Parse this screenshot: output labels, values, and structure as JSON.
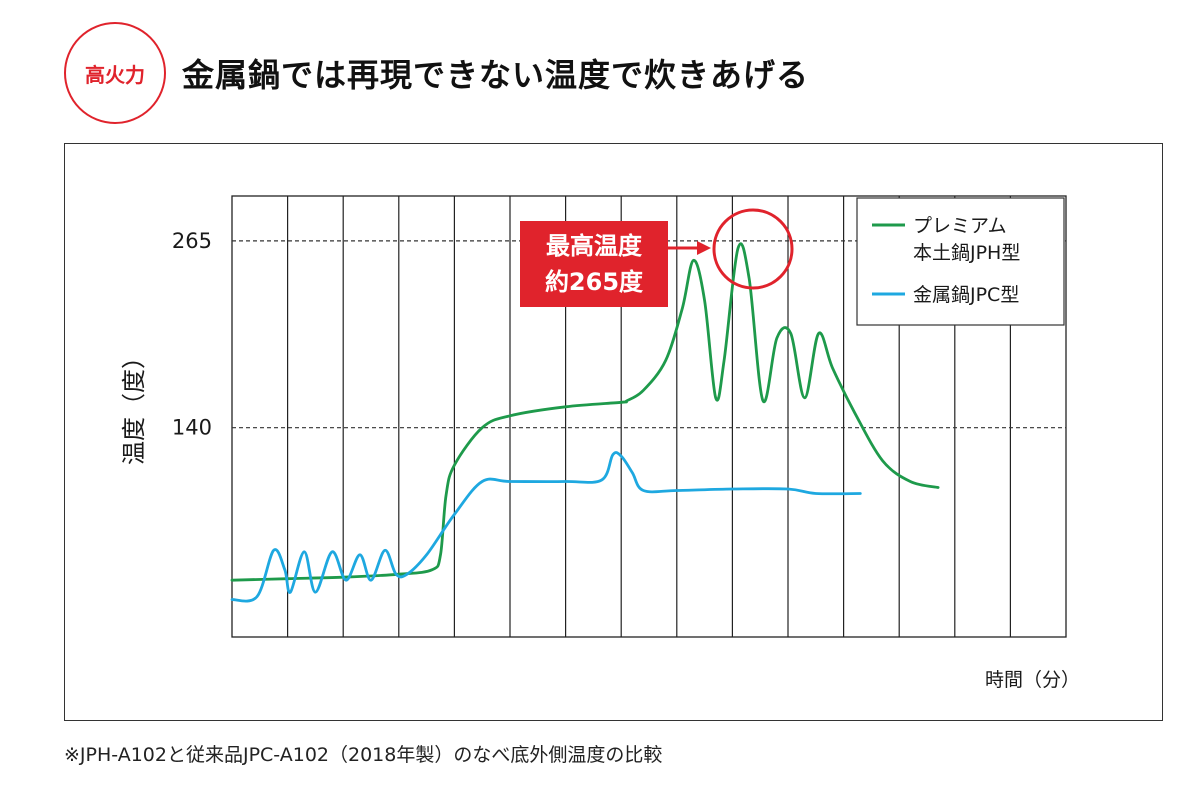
{
  "header": {
    "badge": "高火力",
    "title": "金属鍋では再現できない温度で炊きあげる"
  },
  "annotation": {
    "line1": "最高温度",
    "line2": "約265度"
  },
  "footnote": "※JPH-A102と従来品JPC-A102（2018年製）のなべ底外側温度の比較",
  "colors": {
    "accent": "#e0232c",
    "series_premium": "#1e9a4b",
    "series_metal": "#1ea8e0"
  },
  "chart_data": {
    "type": "line",
    "ylabel": "温度（度）",
    "xlabel": "時間（分）",
    "y_ticks": [
      140,
      265
    ],
    "y_tick_labels": [
      "140",
      "265"
    ],
    "reference_lines": [
      140,
      265
    ],
    "ylim": [
      0,
      295
    ],
    "xlim": [
      0,
      15
    ],
    "grid": "vertical",
    "legend_position": "top-right",
    "series": [
      {
        "name": "プレミアム本土鍋JPH型",
        "legend_lines": [
          "プレミアム",
          "本土鍋JPH型"
        ],
        "color": "#1e9a4b",
        "points": [
          [
            0,
            38
          ],
          [
            1,
            39
          ],
          [
            2,
            40
          ],
          [
            3,
            42
          ],
          [
            3.6,
            45
          ],
          [
            3.75,
            55
          ],
          [
            3.85,
            95
          ],
          [
            4,
            115
          ],
          [
            4.5,
            140
          ],
          [
            5,
            148
          ],
          [
            6,
            154
          ],
          [
            7,
            157
          ],
          [
            7.1,
            158
          ],
          [
            7.4,
            165
          ],
          [
            7.8,
            185
          ],
          [
            8.1,
            220
          ],
          [
            8.3,
            252
          ],
          [
            8.5,
            225
          ],
          [
            8.7,
            160
          ],
          [
            8.85,
            185
          ],
          [
            9.1,
            260
          ],
          [
            9.3,
            240
          ],
          [
            9.55,
            158
          ],
          [
            9.8,
            200
          ],
          [
            10.05,
            203
          ],
          [
            10.3,
            160
          ],
          [
            10.55,
            203
          ],
          [
            10.8,
            180
          ],
          [
            11.2,
            150
          ],
          [
            11.7,
            118
          ],
          [
            12.2,
            104
          ],
          [
            12.7,
            100
          ]
        ]
      },
      {
        "name": "金属鍋JPC型",
        "legend_lines": [
          "金属鍋JPC型"
        ],
        "color": "#1ea8e0",
        "points": [
          [
            0,
            25
          ],
          [
            0.45,
            27
          ],
          [
            0.75,
            58
          ],
          [
            0.95,
            45
          ],
          [
            1.05,
            30
          ],
          [
            1.3,
            57
          ],
          [
            1.5,
            30
          ],
          [
            1.8,
            57
          ],
          [
            2.05,
            38
          ],
          [
            2.3,
            55
          ],
          [
            2.5,
            38
          ],
          [
            2.75,
            58
          ],
          [
            2.95,
            42
          ],
          [
            3.15,
            42
          ],
          [
            3.5,
            55
          ],
          [
            4,
            82
          ],
          [
            4.5,
            104
          ],
          [
            5,
            104
          ],
          [
            6,
            104
          ],
          [
            6.65,
            105
          ],
          [
            6.85,
            122
          ],
          [
            7,
            121
          ],
          [
            7.2,
            110
          ],
          [
            7.4,
            98
          ],
          [
            8,
            98
          ],
          [
            9,
            99
          ],
          [
            10,
            99
          ],
          [
            10.5,
            96
          ],
          [
            11.3,
            96
          ]
        ]
      }
    ]
  }
}
